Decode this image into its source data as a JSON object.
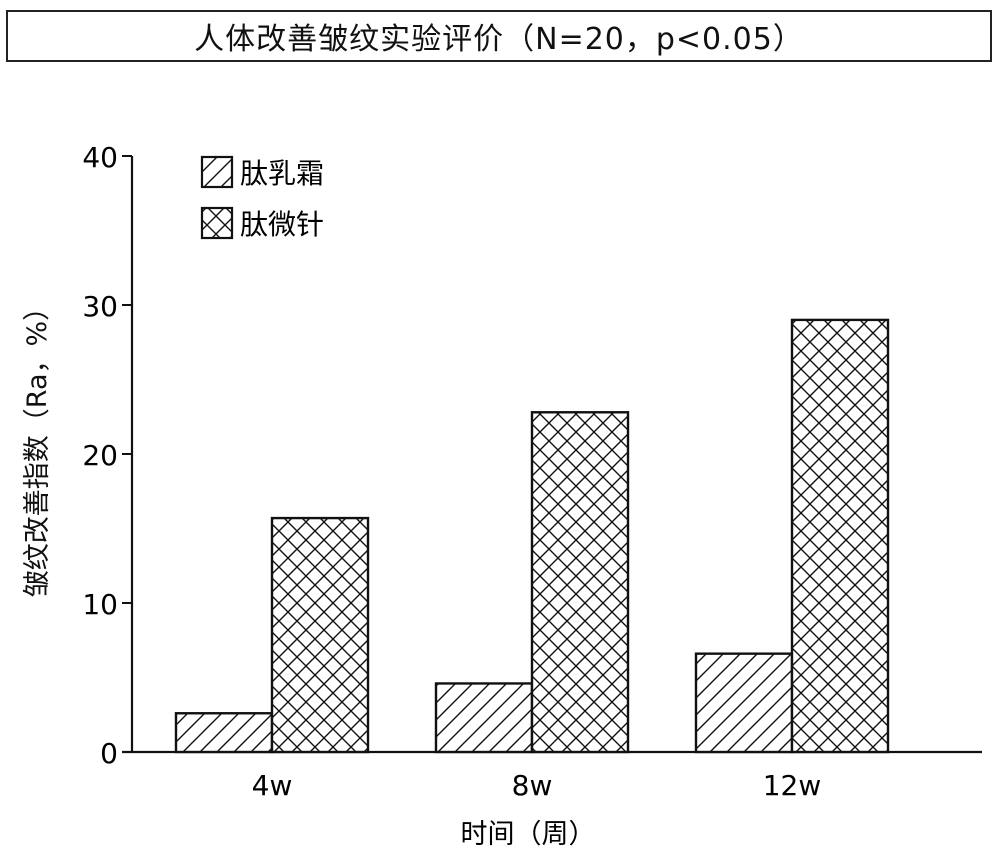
{
  "chart_data": {
    "type": "bar",
    "title": "人体改善皱纹实验评价（N=20，p<0.05）",
    "xlabel": "时间（周）",
    "ylabel": "皱纹改善指数（Ra，%）",
    "categories": [
      "4w",
      "8w",
      "12w"
    ],
    "series": [
      {
        "name": "肽乳霜",
        "pattern": "diagonal-hatch",
        "values": [
          2.6,
          4.6,
          6.6
        ]
      },
      {
        "name": "肽微针",
        "pattern": "cross-hatch",
        "values": [
          15.7,
          22.8,
          29.0
        ]
      }
    ],
    "ylim": [
      0,
      40
    ],
    "yticks": [
      0,
      10,
      20,
      30,
      40
    ],
    "grid": false,
    "legend_position": "upper-left"
  },
  "colors": {
    "stroke": "#111111",
    "background": "#ffffff"
  }
}
